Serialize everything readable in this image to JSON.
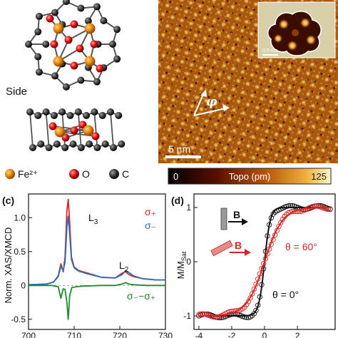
{
  "panel_a": {
    "side_label": "Side",
    "legend": [
      {
        "label": "Fe²⁺",
        "color": "#e8870f",
        "icon": "fe-atom-icon"
      },
      {
        "label": "O",
        "color": "#e01010",
        "icon": "o-atom-icon"
      },
      {
        "label": "C",
        "color": "#111111",
        "icon": "c-atom-icon"
      }
    ]
  },
  "panel_b": {
    "phi_label": "φ",
    "scalebar_label": "5 nm",
    "inset_scalebar_label": "0.5 nm",
    "colorbar": {
      "min_label": "0",
      "title": "Topo (pm)",
      "max_label": "125"
    }
  },
  "panel_c": {
    "label": "(c)",
    "ylabel": "Norm. XAS/XMCD",
    "annotations": {
      "L3": "L",
      "L3_sub": "3",
      "L2": "L",
      "L2_sub": "2",
      "sigma_plus": "σ₊",
      "sigma_minus": "σ₋",
      "diff": "σ₋−σ₊"
    }
  },
  "panel_d": {
    "label": "(d)",
    "ylabel": "M/M",
    "ylabel_sub": "Sat",
    "field_label": "B",
    "theta_60": "θ = 60°",
    "theta_0": "θ = 0°"
  },
  "chart_data": [
    {
      "type": "line",
      "title": "",
      "xlabel": "",
      "ylabel": "Norm. XAS/XMCD",
      "xlim": [
        700,
        730
      ],
      "ylim": [
        -0.65,
        1.35
      ],
      "xticks": [
        700,
        710,
        720,
        730
      ],
      "yticks": [
        -0.5,
        0,
        0.5,
        1.0
      ],
      "ytick_labels": [
        "-0.5",
        "0",
        "0.5",
        "1.0"
      ],
      "series": [
        {
          "name": "σ₊",
          "color": "#d62828",
          "x": [
            700,
            704,
            705.5,
            706.5,
            707.1,
            707.6,
            708,
            708.4,
            708.7,
            709,
            709.4,
            710,
            711,
            713,
            716,
            719,
            720.5,
            721.3,
            722,
            723,
            725,
            728,
            730
          ],
          "y": [
            0.01,
            0.02,
            0.05,
            0.14,
            0.32,
            0.2,
            0.42,
            1.1,
            1.27,
            0.95,
            0.42,
            0.27,
            0.22,
            0.18,
            0.12,
            0.11,
            0.18,
            0.2,
            0.16,
            0.13,
            0.1,
            0.08,
            0.08
          ]
        },
        {
          "name": "σ₋",
          "color": "#2a6fb8",
          "x": [
            700,
            704,
            705.5,
            706.5,
            707.1,
            707.6,
            708,
            708.4,
            708.7,
            709,
            709.4,
            710,
            711,
            713,
            716,
            719,
            720.5,
            721.3,
            722,
            723,
            725,
            728,
            730
          ],
          "y": [
            0.01,
            0.02,
            0.05,
            0.13,
            0.28,
            0.22,
            0.34,
            0.85,
            1.02,
            0.78,
            0.38,
            0.26,
            0.21,
            0.17,
            0.12,
            0.11,
            0.16,
            0.22,
            0.19,
            0.14,
            0.1,
            0.08,
            0.08
          ]
        },
        {
          "name": "σ₋−σ₊",
          "color": "#1e8a2e",
          "x": [
            700,
            705,
            706.5,
            707.1,
            707.6,
            708,
            708.4,
            708.7,
            709,
            709.5,
            710.5,
            712,
            716,
            719,
            720.5,
            721.3,
            722,
            723,
            726,
            730
          ],
          "y": [
            0,
            0,
            -0.02,
            -0.19,
            -0.05,
            -0.06,
            -0.25,
            -0.5,
            -0.16,
            -0.03,
            -0.02,
            -0.01,
            0,
            0,
            0.02,
            0.04,
            0.02,
            0.01,
            0,
            0
          ]
        }
      ]
    },
    {
      "type": "scatter",
      "title": "",
      "xlabel": "",
      "ylabel": "M/M_Sat",
      "xlim": [
        -4.3,
        4.3
      ],
      "ylim": [
        -1.25,
        1.25
      ],
      "xticks": [
        -4,
        -2,
        0,
        2
      ],
      "xtick_labels": [
        "-4",
        "-2",
        "0",
        "2"
      ],
      "yticks": [
        -1,
        0,
        1
      ],
      "ytick_labels": [
        "-1",
        "0",
        "1"
      ],
      "series": [
        {
          "name": "θ = 0°",
          "color": "#111111",
          "fit_scale": 0.35
        },
        {
          "name": "θ = 60°",
          "color": "#d62828",
          "fit_scale": 1.1
        }
      ]
    }
  ]
}
